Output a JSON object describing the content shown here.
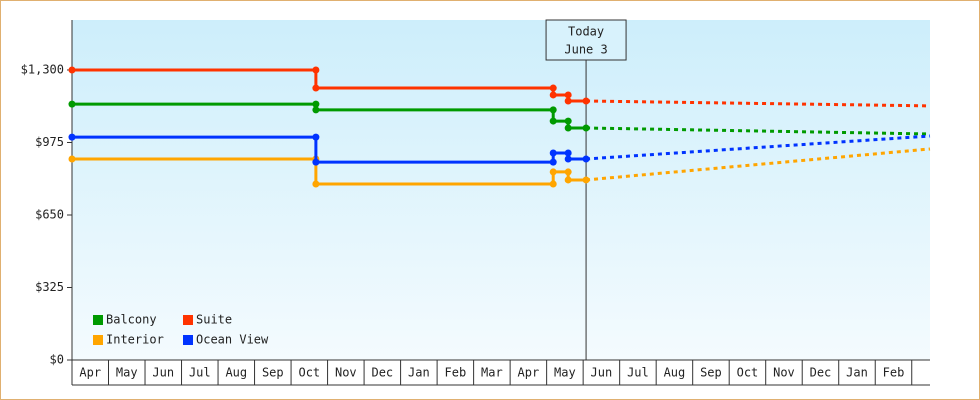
{
  "chart_data": {
    "type": "line",
    "categories": [
      "Apr",
      "May",
      "Jun",
      "Jul",
      "Aug",
      "Sep",
      "Oct",
      "Nov",
      "Dec",
      "Jan",
      "Feb",
      "Mar",
      "Apr",
      "May",
      "Jun",
      "Jul",
      "Aug",
      "Sep",
      "Oct",
      "Nov",
      "Dec",
      "Jan",
      "Feb"
    ],
    "xlim": [
      0,
      23.5
    ],
    "ylim": [
      0,
      1524
    ],
    "yticks": [
      {
        "value": 0,
        "label": "$0"
      },
      {
        "value": 325,
        "label": "$325"
      },
      {
        "value": 650,
        "label": "$650"
      },
      {
        "value": 975,
        "label": "$975"
      },
      {
        "value": 1300,
        "label": "$1,300"
      }
    ],
    "annotation": {
      "lines": [
        "Today",
        "June 3"
      ],
      "x": 14.08
    },
    "legend": "lower left",
    "series": [
      {
        "name": "Balcony",
        "color": "#009a00",
        "x": [
          0,
          6.68,
          6.68,
          13.18,
          13.18,
          13.59,
          13.59,
          14.08
        ],
        "values": [
          1147,
          1147,
          1121,
          1121,
          1071,
          1071,
          1040,
          1040
        ],
        "projected_x": [
          14.08,
          23.5
        ],
        "projected_values": [
          1040,
          1013
        ]
      },
      {
        "name": "Suite",
        "color": "#ff3300",
        "x": [
          0,
          6.68,
          6.68,
          13.18,
          13.18,
          13.59,
          13.59,
          14.08
        ],
        "values": [
          1300,
          1300,
          1219,
          1219,
          1188,
          1188,
          1161,
          1161
        ],
        "projected_x": [
          14.08,
          23.5
        ],
        "projected_values": [
          1161,
          1139
        ]
      },
      {
        "name": "Interior",
        "color": "#ffa500",
        "x": [
          0,
          6.68,
          6.68,
          13.18,
          13.18,
          13.59,
          13.59,
          14.08
        ],
        "values": [
          901,
          901,
          789,
          789,
          843,
          843,
          807,
          807
        ],
        "projected_x": [
          14.08,
          23.5
        ],
        "projected_values": [
          807,
          946
        ]
      },
      {
        "name": "Ocean View",
        "color": "#0033ff",
        "x": [
          0,
          6.68,
          6.68,
          13.18,
          13.18,
          13.59,
          13.59,
          14.08
        ],
        "values": [
          999,
          999,
          887,
          887,
          928,
          928,
          901,
          901
        ],
        "projected_x": [
          14.08,
          23.5
        ],
        "projected_values": [
          901,
          1004
        ]
      }
    ]
  }
}
